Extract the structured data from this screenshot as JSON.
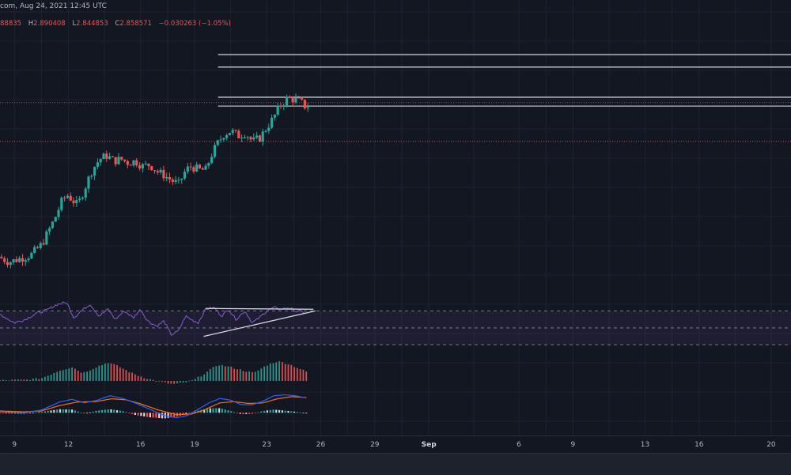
{
  "header": {
    "source_date": "com, Aug 24, 2021 12:45 UTC"
  },
  "ohlc": {
    "o_value": "88835",
    "h_label": "H",
    "h_value": "2.890408",
    "l_label": "L",
    "l_value": "2.844853",
    "c_label": "C",
    "c_value": "2.858571",
    "change": "−0.030263 (−1.05%)"
  },
  "colors": {
    "background": "#131722",
    "grid": "#1f2330",
    "up": "#26a69a",
    "down": "#ef5350",
    "rsi": "#7e57c2",
    "macd": "#2962ff",
    "signal": "#ff6d00",
    "level_line": "#d1d4dc"
  },
  "x_axis": {
    "ticks": [
      {
        "label": "9",
        "day": 9,
        "bold": false
      },
      {
        "label": "12",
        "day": 12,
        "bold": false
      },
      {
        "label": "16",
        "day": 16,
        "bold": false
      },
      {
        "label": "19",
        "day": 19,
        "bold": false
      },
      {
        "label": "23",
        "day": 23,
        "bold": false
      },
      {
        "label": "26",
        "day": 26,
        "bold": false
      },
      {
        "label": "29",
        "day": 29,
        "bold": false
      },
      {
        "label": "Sep",
        "day": 32,
        "bold": true
      },
      {
        "label": "6",
        "day": 37,
        "bold": false
      },
      {
        "label": "9",
        "day": 40,
        "bold": false
      },
      {
        "label": "13",
        "day": 44,
        "bold": false
      },
      {
        "label": "16",
        "day": 47,
        "bold": false
      },
      {
        "label": "20",
        "day": 51,
        "bold": false
      }
    ]
  },
  "chart_data": {
    "type": "candlestick",
    "timeframe_hint": "Aug 2021, 4h candles",
    "x_day_range": [
      8.2,
      52.1
    ],
    "price_range": [
      1.92,
      3.28
    ],
    "horizontal_levels": [
      {
        "price": 3.15,
        "color": "#d1d4dc",
        "style": "solid",
        "from_day": 20.3
      },
      {
        "price": 3.08,
        "color": "#d1d4dc",
        "style": "solid",
        "from_day": 20.3
      },
      {
        "price": 2.91,
        "color": "#d1d4dc",
        "style": "solid",
        "from_day": 20.3
      },
      {
        "price": 2.86,
        "color": "#d1d4dc",
        "style": "solid",
        "from_day": 20.3
      },
      {
        "price": 2.88,
        "color": "#ef5350",
        "style": "dotted",
        "from_day": 8.2
      },
      {
        "price": 2.66,
        "color": "#ef5350",
        "style": "dotted",
        "from_day": 8.2
      }
    ],
    "anchors": [
      [
        8.2,
        2.01
      ],
      [
        8.8,
        1.98
      ],
      [
        9.4,
        2.0
      ],
      [
        10.0,
        2.02
      ],
      [
        10.6,
        2.08
      ],
      [
        10.9,
        2.14
      ],
      [
        11.3,
        2.22
      ],
      [
        11.7,
        2.32
      ],
      [
        12.0,
        2.36
      ],
      [
        12.3,
        2.33
      ],
      [
        12.6,
        2.3
      ],
      [
        13.0,
        2.4
      ],
      [
        13.4,
        2.5
      ],
      [
        13.8,
        2.56
      ],
      [
        14.2,
        2.58
      ],
      [
        14.6,
        2.55
      ],
      [
        15.0,
        2.56
      ],
      [
        15.4,
        2.54
      ],
      [
        15.8,
        2.55
      ],
      [
        16.2,
        2.52
      ],
      [
        16.6,
        2.53
      ],
      [
        17.0,
        2.49
      ],
      [
        17.4,
        2.47
      ],
      [
        17.8,
        2.44
      ],
      [
        18.2,
        2.42
      ],
      [
        18.6,
        2.5
      ],
      [
        18.9,
        2.52
      ],
      [
        19.3,
        2.5
      ],
      [
        19.7,
        2.5
      ],
      [
        20.0,
        2.58
      ],
      [
        20.3,
        2.64
      ],
      [
        20.7,
        2.7
      ],
      [
        21.1,
        2.72
      ],
      [
        21.5,
        2.69
      ],
      [
        21.9,
        2.71
      ],
      [
        22.3,
        2.66
      ],
      [
        22.7,
        2.68
      ],
      [
        23.1,
        2.74
      ],
      [
        23.5,
        2.8
      ],
      [
        23.8,
        2.86
      ],
      [
        24.2,
        2.9
      ],
      [
        24.6,
        2.9
      ],
      [
        25.0,
        2.88
      ],
      [
        25.2,
        2.86
      ]
    ],
    "rsi": {
      "range": [
        20,
        90
      ],
      "upper_band": 70,
      "middle": 50,
      "lower_band": 30,
      "upper_trendline": {
        "from": [
          19.6,
          73
        ],
        "to": [
          25.6,
          72
        ]
      },
      "lower_trendline": {
        "from": [
          19.5,
          40
        ],
        "to": [
          25.7,
          70
        ]
      },
      "anchors": [
        [
          8.2,
          66
        ],
        [
          9.0,
          56
        ],
        [
          9.6,
          60
        ],
        [
          10.2,
          67
        ],
        [
          10.8,
          71
        ],
        [
          11.4,
          78
        ],
        [
          11.9,
          80
        ],
        [
          12.3,
          62
        ],
        [
          12.7,
          70
        ],
        [
          13.2,
          78
        ],
        [
          13.7,
          64
        ],
        [
          14.2,
          72
        ],
        [
          14.6,
          60
        ],
        [
          15.1,
          70
        ],
        [
          15.6,
          62
        ],
        [
          16.0,
          72
        ],
        [
          16.4,
          58
        ],
        [
          16.9,
          52
        ],
        [
          17.3,
          58
        ],
        [
          17.7,
          42
        ],
        [
          18.1,
          46
        ],
        [
          18.5,
          64
        ],
        [
          18.8,
          60
        ],
        [
          19.2,
          56
        ],
        [
          19.6,
          72
        ],
        [
          20.1,
          74
        ],
        [
          20.5,
          64
        ],
        [
          20.9,
          72
        ],
        [
          21.3,
          60
        ],
        [
          21.8,
          70
        ],
        [
          22.2,
          56
        ],
        [
          22.6,
          62
        ],
        [
          23.0,
          70
        ],
        [
          23.4,
          74
        ],
        [
          23.8,
          72
        ],
        [
          24.2,
          74
        ],
        [
          24.6,
          70
        ],
        [
          25.0,
          69
        ],
        [
          25.2,
          67
        ]
      ]
    },
    "histogram": {
      "range": [
        -1.2,
        3.6
      ],
      "anchors": [
        [
          8.2,
          0.1
        ],
        [
          9.5,
          0.15
        ],
        [
          10.5,
          0.4
        ],
        [
          11.5,
          1.6
        ],
        [
          12.2,
          2.1
        ],
        [
          12.8,
          1.2
        ],
        [
          13.6,
          2.2
        ],
        [
          14.2,
          2.8
        ],
        [
          14.8,
          2.2
        ],
        [
          15.5,
          1.2
        ],
        [
          16.2,
          0.5
        ],
        [
          17.0,
          -0.1
        ],
        [
          17.8,
          -0.5
        ],
        [
          18.4,
          -0.3
        ],
        [
          19.0,
          0.2
        ],
        [
          19.6,
          1.2
        ],
        [
          20.3,
          2.5
        ],
        [
          21.0,
          2.1
        ],
        [
          21.7,
          1.6
        ],
        [
          22.3,
          1.2
        ],
        [
          23.0,
          2.4
        ],
        [
          23.6,
          3.0
        ],
        [
          24.2,
          2.6
        ],
        [
          24.8,
          1.9
        ],
        [
          25.2,
          1.4
        ]
      ]
    },
    "macd": {
      "range": [
        -1.0,
        1.2
      ],
      "macd_anchors": [
        [
          8.2,
          0.05
        ],
        [
          9.5,
          0.0
        ],
        [
          10.5,
          0.15
        ],
        [
          11.5,
          0.6
        ],
        [
          12.2,
          0.75
        ],
        [
          12.9,
          0.55
        ],
        [
          13.6,
          0.7
        ],
        [
          14.3,
          0.95
        ],
        [
          15.0,
          0.8
        ],
        [
          15.7,
          0.55
        ],
        [
          16.5,
          0.2
        ],
        [
          17.3,
          -0.15
        ],
        [
          18.0,
          -0.28
        ],
        [
          18.6,
          -0.15
        ],
        [
          19.2,
          0.2
        ],
        [
          19.8,
          0.55
        ],
        [
          20.4,
          0.8
        ],
        [
          21.0,
          0.7
        ],
        [
          21.6,
          0.45
        ],
        [
          22.2,
          0.45
        ],
        [
          22.8,
          0.65
        ],
        [
          23.4,
          0.95
        ],
        [
          24.0,
          1.0
        ],
        [
          24.6,
          0.95
        ],
        [
          25.2,
          0.82
        ]
      ],
      "signal_anchors": [
        [
          8.2,
          0.1
        ],
        [
          9.5,
          0.05
        ],
        [
          10.5,
          0.1
        ],
        [
          11.5,
          0.4
        ],
        [
          12.5,
          0.6
        ],
        [
          13.5,
          0.62
        ],
        [
          14.4,
          0.78
        ],
        [
          15.2,
          0.72
        ],
        [
          16.0,
          0.5
        ],
        [
          17.0,
          0.15
        ],
        [
          18.0,
          -0.1
        ],
        [
          18.8,
          -0.08
        ],
        [
          19.5,
          0.15
        ],
        [
          20.4,
          0.55
        ],
        [
          21.2,
          0.62
        ],
        [
          22.0,
          0.52
        ],
        [
          22.8,
          0.55
        ],
        [
          23.6,
          0.78
        ],
        [
          24.4,
          0.9
        ],
        [
          25.2,
          0.85
        ]
      ],
      "hist_anchors": [
        [
          8.2,
          -0.02
        ],
        [
          9.5,
          -0.05
        ],
        [
          10.5,
          0.05
        ],
        [
          11.5,
          0.2
        ],
        [
          12.2,
          0.18
        ],
        [
          12.9,
          -0.05
        ],
        [
          13.6,
          0.12
        ],
        [
          14.3,
          0.2
        ],
        [
          15.0,
          0.1
        ],
        [
          15.7,
          -0.12
        ],
        [
          16.5,
          -0.25
        ],
        [
          17.3,
          -0.32
        ],
        [
          18.0,
          -0.22
        ],
        [
          18.6,
          -0.05
        ],
        [
          19.2,
          0.12
        ],
        [
          19.8,
          0.25
        ],
        [
          20.4,
          0.26
        ],
        [
          21.0,
          0.1
        ],
        [
          21.6,
          -0.08
        ],
        [
          22.2,
          -0.06
        ],
        [
          22.8,
          0.1
        ],
        [
          23.4,
          0.18
        ],
        [
          24.0,
          0.12
        ],
        [
          24.6,
          0.06
        ],
        [
          25.2,
          -0.02
        ]
      ]
    }
  }
}
